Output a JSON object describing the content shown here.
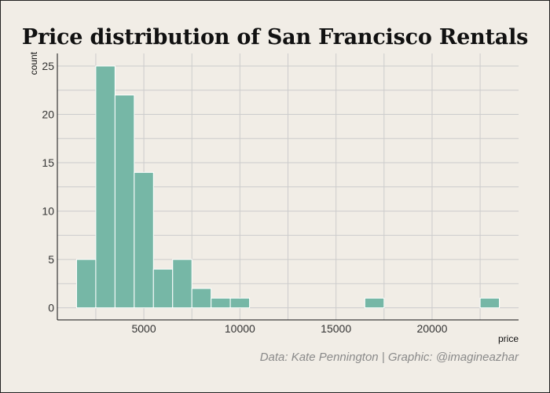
{
  "chart_data": {
    "type": "bar",
    "title": "Price distribution of San Francisco Rentals",
    "xlabel": "price",
    "ylabel": "count",
    "caption": "Data: Kate Pennington | Graphic: @imagineazhar",
    "bin_width": 1000,
    "bins": [
      {
        "x0": 1500,
        "x1": 2500,
        "count": 5
      },
      {
        "x0": 2500,
        "x1": 3500,
        "count": 25
      },
      {
        "x0": 3500,
        "x1": 4500,
        "count": 22
      },
      {
        "x0": 4500,
        "x1": 5500,
        "count": 14
      },
      {
        "x0": 5500,
        "x1": 6500,
        "count": 4
      },
      {
        "x0": 6500,
        "x1": 7500,
        "count": 5
      },
      {
        "x0": 7500,
        "x1": 8500,
        "count": 2
      },
      {
        "x0": 8500,
        "x1": 9500,
        "count": 1
      },
      {
        "x0": 9500,
        "x1": 10500,
        "count": 1
      },
      {
        "x0": 16500,
        "x1": 17500,
        "count": 1
      },
      {
        "x0": 22500,
        "x1": 23500,
        "count": 1
      }
    ],
    "xlim": [
      500,
      24500
    ],
    "ylim": [
      -1.25,
      26.3
    ],
    "xticks": [
      5000,
      10000,
      15000,
      20000
    ],
    "yticks": [
      0,
      5,
      10,
      15,
      20,
      25
    ],
    "bar_color": "#76b7a6",
    "bar_edge_color": "#ffffff",
    "background_color": "#f1ede6",
    "grid_color": "#cccccc",
    "grid": true
  }
}
